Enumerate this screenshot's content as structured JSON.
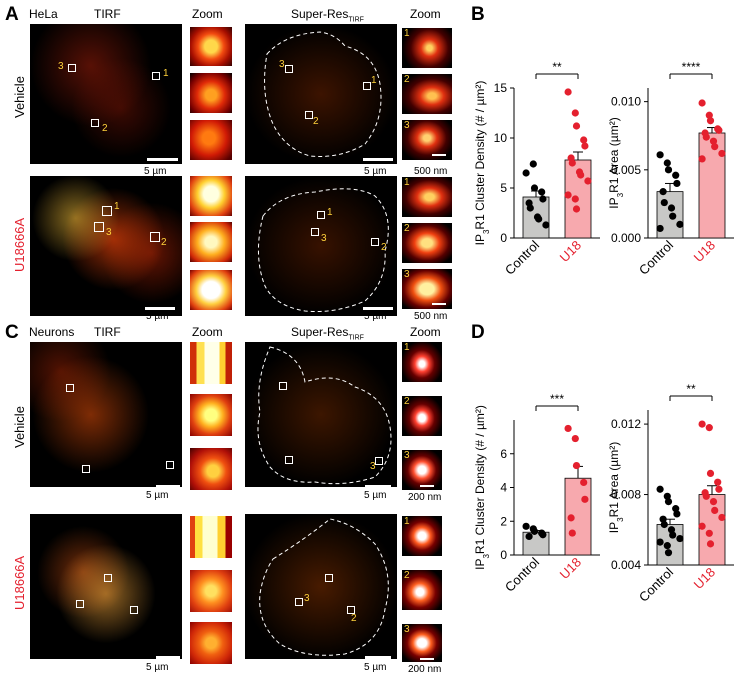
{
  "panels": {
    "A": {
      "letter": "A",
      "cell": "HeLa",
      "method": "TIRF",
      "zoom1": "Zoom",
      "superres": "Super-Res",
      "superres_sub": "TIRF",
      "zoom2": "Zoom",
      "row1": "Vehicle",
      "row2": "U18666A",
      "scale_um": "5 µm",
      "scale_nm": "500 nm"
    },
    "C": {
      "letter": "C",
      "cell": "Neurons",
      "method": "TIRF",
      "zoom1": "Zoom",
      "superres": "Super-Res",
      "superres_sub": "TIRF",
      "zoom2": "Zoom",
      "row1": "Vehicle",
      "row2": "U18666A",
      "scale_um": "5 µm",
      "scale_nm": "200 nm"
    },
    "B": {
      "letter": "B"
    },
    "D": {
      "letter": "D"
    },
    "roi_labels": [
      "1",
      "2",
      "3"
    ],
    "colors": {
      "control_bar": "#c8c8c6",
      "treat_bar": "#f7a9ae",
      "treat_dot": "#e4202e",
      "control_dot": "#000000",
      "row2_label": "#e4202e",
      "roi_number": "#ffd23b"
    }
  },
  "chart_data": [
    {
      "id": "B-left",
      "type": "bar",
      "categories": [
        "Control",
        "U18"
      ],
      "ylabel": "IP3R1 Cluster Density (# / µm²)",
      "ylim": [
        0,
        15
      ],
      "yticks": [
        "0",
        "5",
        "10",
        "15"
      ],
      "significance": "**",
      "series": [
        {
          "values": [
            4.1,
            7.8
          ],
          "error": [
            0.6,
            0.8
          ]
        }
      ],
      "points": [
        [
          6.5,
          7.4,
          5.0,
          4.6,
          3.9,
          3.5,
          3.0,
          2.1,
          1.9,
          1.3
        ],
        [
          14.6,
          12.5,
          11.2,
          9.8,
          9.2,
          8.0,
          7.5,
          6.6,
          6.3,
          5.7,
          4.3,
          3.9,
          2.9
        ]
      ]
    },
    {
      "id": "B-right",
      "type": "bar",
      "categories": [
        "Control",
        "U18"
      ],
      "ylabel": "IP3R1 Area (µm²)",
      "ylim": [
        0,
        0.011
      ],
      "yticks": [
        "0.000",
        "0.005",
        "0.010"
      ],
      "significance": "****",
      "series": [
        {
          "values": [
            0.0034,
            0.0077
          ],
          "error": [
            0.0006,
            0.0004
          ]
        }
      ],
      "points": [
        [
          0.0061,
          0.0055,
          0.005,
          0.0046,
          0.004,
          0.0034,
          0.0026,
          0.0022,
          0.0016,
          0.001,
          0.0007
        ],
        [
          0.0099,
          0.009,
          0.0086,
          0.008,
          0.0079,
          0.0077,
          0.0074,
          0.0071,
          0.0067,
          0.0062,
          0.0058
        ]
      ]
    },
    {
      "id": "D-left",
      "type": "bar",
      "categories": [
        "Control",
        "U18"
      ],
      "ylabel": "IP3R1 Cluster Density (# / µm²)",
      "ylim": [
        0,
        8
      ],
      "yticks": [
        "0",
        "2",
        "4",
        "6"
      ],
      "significance": "***",
      "series": [
        {
          "values": [
            1.35,
            4.55
          ],
          "error": [
            0.1,
            0.7
          ]
        }
      ],
      "points": [
        [
          1.7,
          1.55,
          1.4,
          1.3,
          1.2,
          1.1
        ],
        [
          7.5,
          6.9,
          5.3,
          4.3,
          3.3,
          2.2,
          1.3
        ]
      ]
    },
    {
      "id": "D-right",
      "type": "bar",
      "categories": [
        "Control",
        "U18"
      ],
      "ylabel": "IP3R1 Area (µm²)",
      "ylim": [
        0.004,
        0.0128
      ],
      "yticks": [
        "0.004",
        "0.008",
        "0.012"
      ],
      "significance": "**",
      "series": [
        {
          "values": [
            0.0063,
            0.008
          ],
          "error": [
            0.0003,
            0.0005
          ]
        }
      ],
      "points": [
        [
          0.0083,
          0.0079,
          0.0076,
          0.0072,
          0.0069,
          0.0066,
          0.0063,
          0.006,
          0.0057,
          0.0055,
          0.0053,
          0.0051,
          0.0047
        ],
        [
          0.012,
          0.0118,
          0.0092,
          0.0087,
          0.0083,
          0.0081,
          0.0079,
          0.0076,
          0.0071,
          0.0067,
          0.0062,
          0.0058,
          0.0052
        ]
      ]
    }
  ]
}
